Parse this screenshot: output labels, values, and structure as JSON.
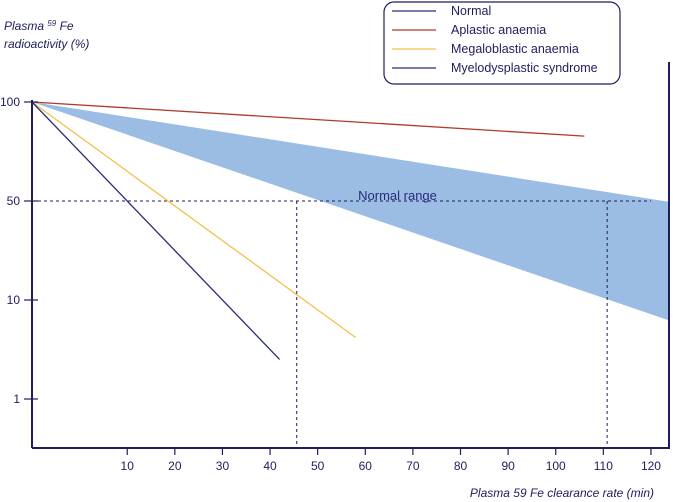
{
  "chart_data": {
    "type": "line",
    "title": "",
    "ylabel": {
      "prefix": "Plasma ",
      "isotope": "59",
      "suffix": " Fe",
      "line2": "radioactivity (%)"
    },
    "xlabel": "Plasma 59 Fe clearance rate (min)",
    "xlim": [
      -10,
      124
    ],
    "x_ticks": [
      10,
      20,
      30,
      40,
      50,
      60,
      70,
      80,
      90,
      100,
      110,
      120
    ],
    "y_ticks": [
      {
        "label": "100",
        "pos": 0
      },
      {
        "label": "50",
        "pos": 1
      },
      {
        "label": "10",
        "pos": 2
      },
      {
        "label": "1",
        "pos": 3
      }
    ],
    "y_scale_note": "categorical/log-like scale; positions are tick indices",
    "series": [
      {
        "name": "Normal",
        "color": "#2b2a7a",
        "points": [
          [
            -10,
            0
          ],
          [
            7,
            0
          ]
        ]
      },
      {
        "name": "Aplastic anaemia",
        "color": "#b03a2e",
        "points": [
          [
            -10,
            0
          ],
          [
            106,
            0.345
          ]
        ]
      },
      {
        "name": "Megaloblastic anaemia",
        "color": "#f2c14e",
        "points": [
          [
            -10,
            0
          ],
          [
            58,
            2.38
          ]
        ]
      },
      {
        "name": "Myelodysplastic syndrome",
        "color": "#2b2a7a",
        "points": [
          [
            -10,
            0
          ],
          [
            42,
            2.6
          ]
        ]
      }
    ],
    "band": {
      "label": "Normal range",
      "color": "#9bbde4",
      "upper": [
        [
          -10,
          0
        ],
        [
          124,
          1.01
        ]
      ],
      "lower": [
        [
          -10,
          0
        ],
        [
          124,
          2.21
        ]
      ]
    },
    "reference_lines": {
      "y_pos": 1,
      "x_left": -10,
      "x_right": 120,
      "x_verticals": [
        45.6,
        110.8
      ],
      "label_50": "50"
    },
    "legend_placement": "top-right",
    "colors": {
      "axis": "#1f1d5c",
      "band": "#9bbde4"
    }
  }
}
